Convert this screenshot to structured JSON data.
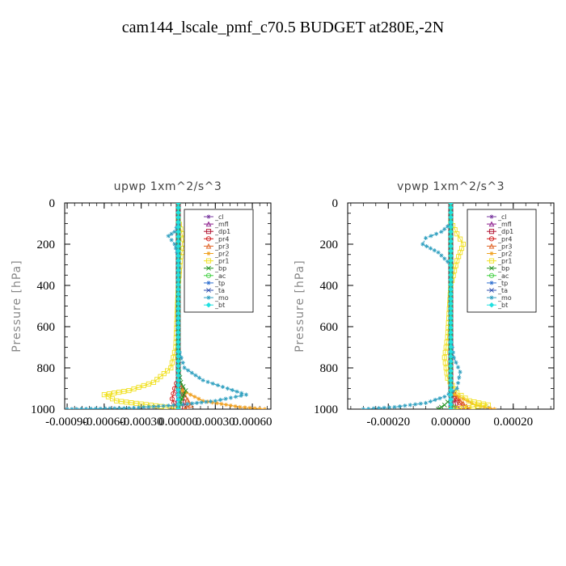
{
  "figure_title": "cam144_lscale_pmf_c70.5  BUDGET at280E,-2N",
  "chart_data": [
    {
      "type": "line",
      "title": "upwp    1xm^2/s^3",
      "ylabel": "Pressure  [hPa]",
      "xlabel": "",
      "ylim": [
        1000,
        0
      ],
      "xlim": [
        -0.00092,
        0.00075
      ],
      "yticks": [
        0,
        200,
        400,
        600,
        800,
        1000
      ],
      "xticks": [
        -0.0009,
        -0.0006,
        -0.0003,
        0.0,
        0.0003,
        0.0006
      ],
      "xtick_labels": [
        "-0.00090",
        "-0.00060",
        "-0.00030",
        "0.00000",
        "0.00030",
        "0.00060"
      ],
      "legend_position": "top-right",
      "series": [
        {
          "name": "_cl",
          "color": "#7a3aa0",
          "marker": "star",
          "points": [
            [
              0,
              0
            ],
            [
              0,
              100
            ],
            [
              0,
              200
            ],
            [
              0,
              300
            ],
            [
              0,
              400
            ],
            [
              0,
              500
            ],
            [
              0,
              600
            ],
            [
              0,
              700
            ],
            [
              0,
              800
            ],
            [
              0,
              900
            ],
            [
              0,
              1000
            ]
          ]
        },
        {
          "name": "_mfl",
          "color": "#8b1a8b",
          "marker": "triangle",
          "points": [
            [
              0,
              0
            ],
            [
              0,
              100
            ],
            [
              0,
              200
            ],
            [
              0,
              300
            ],
            [
              0,
              400
            ],
            [
              0,
              500
            ],
            [
              0,
              600
            ],
            [
              0,
              700
            ],
            [
              0,
              800
            ],
            [
              0,
              900
            ],
            [
              0,
              1000
            ]
          ]
        },
        {
          "name": "_dp1",
          "color": "#b01030",
          "marker": "square",
          "points": [
            [
              0,
              0
            ],
            [
              0,
              100
            ],
            [
              0,
              200
            ],
            [
              0,
              300
            ],
            [
              0,
              400
            ],
            [
              0,
              500
            ],
            [
              0,
              600
            ],
            [
              0,
              700
            ],
            [
              0,
              800
            ],
            [
              0,
              880
            ],
            [
              3e-05,
              940
            ],
            [
              5e-05,
              990
            ]
          ]
        },
        {
          "name": "_pr4",
          "color": "#d01818",
          "marker": "circle",
          "points": [
            [
              0,
              0
            ],
            [
              0,
              500
            ],
            [
              0,
              850
            ],
            [
              -3e-05,
              900
            ],
            [
              -5e-05,
              950
            ],
            [
              -2e-05,
              990
            ]
          ]
        },
        {
          "name": "_pr3",
          "color": "#e06020",
          "marker": "triangle",
          "points": [
            [
              0,
              0
            ],
            [
              0,
              850
            ],
            [
              5e-05,
              930
            ],
            [
              0.0001,
              980
            ],
            [
              5e-05,
              1000
            ]
          ]
        },
        {
          "name": "_pr2",
          "color": "#f0a020",
          "marker": "star",
          "points": [
            [
              0,
              0
            ],
            [
              0,
              900
            ],
            [
              0.0002,
              960
            ],
            [
              0.0005,
              990
            ],
            [
              0.0007,
              1000
            ]
          ]
        },
        {
          "name": "_pr1",
          "color": "#f0e020",
          "marker": "square",
          "points": [
            [
              0,
              80
            ],
            [
              3e-05,
              150
            ],
            [
              5e-05,
              200
            ],
            [
              2e-05,
              260
            ],
            [
              0,
              400
            ],
            [
              -2e-05,
              700
            ],
            [
              -6e-05,
              800
            ],
            [
              -0.0002,
              870
            ],
            [
              -0.0004,
              910
            ],
            [
              -0.0006,
              930
            ],
            [
              -0.0005,
              960
            ],
            [
              -0.0001,
              990
            ],
            [
              0,
              1000
            ]
          ]
        },
        {
          "name": "_bp",
          "color": "#209020",
          "marker": "cross",
          "points": [
            [
              0,
              0
            ],
            [
              0,
              800
            ],
            [
              2e-05,
              870
            ],
            [
              6e-05,
              910
            ],
            [
              3e-05,
              950
            ],
            [
              0,
              1000
            ]
          ]
        },
        {
          "name": "_ac",
          "color": "#40d040",
          "marker": "circle",
          "points": [
            [
              0,
              0
            ],
            [
              0,
              900
            ],
            [
              2e-05,
              950
            ],
            [
              0,
              1000
            ]
          ]
        },
        {
          "name": "_tp",
          "color": "#3070d0",
          "marker": "star",
          "points": [
            [
              0,
              0
            ],
            [
              0,
              1000
            ]
          ]
        },
        {
          "name": "_ta",
          "color": "#3050b0",
          "marker": "cross",
          "points": [
            [
              0,
              0
            ],
            [
              0,
              1000
            ]
          ]
        },
        {
          "name": "_mo",
          "color": "#30a0c0",
          "marker": "star",
          "points": [
            [
              0,
              100
            ],
            [
              -3e-05,
              140
            ],
            [
              -8e-05,
              160
            ],
            [
              -3e-05,
              200
            ],
            [
              0,
              260
            ],
            [
              0,
              700
            ],
            [
              5e-05,
              800
            ],
            [
              0.0002,
              860
            ],
            [
              0.0004,
              900
            ],
            [
              0.00055,
              930
            ],
            [
              0.0003,
              960
            ],
            [
              0,
              980
            ],
            [
              -0.0004,
              995
            ],
            [
              -0.0009,
              1000
            ]
          ]
        },
        {
          "name": "_bt",
          "color": "#20e0e0",
          "marker": "diamond",
          "points": [
            [
              0,
              0
            ],
            [
              0,
              1000
            ]
          ]
        }
      ]
    },
    {
      "type": "line",
      "title": "vpwp    1xm^2/s^3",
      "ylabel": "Pressure  [hPa]",
      "xlabel": "",
      "ylim": [
        1000,
        0
      ],
      "xlim": [
        -0.00033,
        0.00033
      ],
      "yticks": [
        0,
        200,
        400,
        600,
        800,
        1000
      ],
      "xticks": [
        -0.0002,
        0.0,
        0.0002
      ],
      "xtick_labels": [
        "-0.00020",
        "0.00000",
        "0.00020"
      ],
      "legend_position": "top-right",
      "series": [
        {
          "name": "_cl",
          "color": "#7a3aa0",
          "marker": "star",
          "points": [
            [
              0,
              0
            ],
            [
              0,
              100
            ],
            [
              0,
              200
            ],
            [
              0,
              300
            ],
            [
              0,
              400
            ],
            [
              0,
              500
            ],
            [
              0,
              600
            ],
            [
              0,
              700
            ],
            [
              0,
              800
            ],
            [
              0,
              900
            ],
            [
              0,
              1000
            ]
          ]
        },
        {
          "name": "_mfl",
          "color": "#8b1a8b",
          "marker": "triangle",
          "points": [
            [
              0,
              0
            ],
            [
              0,
              100
            ],
            [
              0,
              200
            ],
            [
              0,
              300
            ],
            [
              0,
              400
            ],
            [
              0,
              500
            ],
            [
              0,
              600
            ],
            [
              0,
              700
            ],
            [
              0,
              800
            ],
            [
              0,
              900
            ],
            [
              0,
              1000
            ]
          ]
        },
        {
          "name": "_dp1",
          "color": "#b01030",
          "marker": "square",
          "points": [
            [
              0,
              0
            ],
            [
              0,
              100
            ],
            [
              0,
              200
            ],
            [
              0,
              300
            ],
            [
              0,
              400
            ],
            [
              0,
              500
            ],
            [
              0,
              600
            ],
            [
              0,
              700
            ],
            [
              0,
              800
            ],
            [
              0,
              900
            ],
            [
              1e-05,
              950
            ],
            [
              2e-05,
              1000
            ]
          ]
        },
        {
          "name": "_pr4",
          "color": "#d01818",
          "marker": "circle",
          "points": [
            [
              0,
              0
            ],
            [
              0,
              900
            ],
            [
              2e-05,
              950
            ],
            [
              4e-05,
              990
            ]
          ]
        },
        {
          "name": "_pr3",
          "color": "#e06020",
          "marker": "triangle",
          "points": [
            [
              0,
              0
            ],
            [
              0,
              900
            ],
            [
              3e-05,
              960
            ],
            [
              6e-05,
              1000
            ]
          ]
        },
        {
          "name": "_pr2",
          "color": "#f0a020",
          "marker": "star",
          "points": [
            [
              0,
              0
            ],
            [
              0,
              920
            ],
            [
              8e-05,
              980
            ],
            [
              0.00014,
              1000
            ]
          ]
        },
        {
          "name": "_pr1",
          "color": "#f0e020",
          "marker": "square",
          "points": [
            [
              0,
              90
            ],
            [
              2e-05,
              150
            ],
            [
              4e-05,
              200
            ],
            [
              2e-05,
              280
            ],
            [
              0,
              400
            ],
            [
              -1e-05,
              650
            ],
            [
              -2e-05,
              750
            ],
            [
              -1e-05,
              850
            ],
            [
              2e-05,
              920
            ],
            [
              6e-05,
              960
            ],
            [
              0.00012,
              980
            ],
            [
              4e-05,
              995
            ],
            [
              0,
              1000
            ]
          ]
        },
        {
          "name": "_bp",
          "color": "#209020",
          "marker": "cross",
          "points": [
            [
              0,
              0
            ],
            [
              0,
              950
            ],
            [
              -2e-05,
              980
            ],
            [
              -4e-05,
              1000
            ]
          ]
        },
        {
          "name": "_ac",
          "color": "#40d040",
          "marker": "circle",
          "points": [
            [
              0,
              0
            ],
            [
              0,
              960
            ],
            [
              1e-05,
              990
            ],
            [
              0,
              1000
            ]
          ]
        },
        {
          "name": "_tp",
          "color": "#3070d0",
          "marker": "star",
          "points": [
            [
              0,
              0
            ],
            [
              0,
              1000
            ]
          ]
        },
        {
          "name": "_ta",
          "color": "#3050b0",
          "marker": "cross",
          "points": [
            [
              0,
              0
            ],
            [
              0,
              1000
            ]
          ]
        },
        {
          "name": "_mo",
          "color": "#30a0c0",
          "marker": "star",
          "points": [
            [
              0,
              100
            ],
            [
              -3e-05,
              140
            ],
            [
              -8e-05,
              170
            ],
            [
              -9e-05,
              200
            ],
            [
              -4e-05,
              240
            ],
            [
              0,
              300
            ],
            [
              0,
              650
            ],
            [
              1e-05,
              750
            ],
            [
              3e-05,
              820
            ],
            [
              2e-05,
              900
            ],
            [
              -2e-05,
              940
            ],
            [
              -8e-05,
              970
            ],
            [
              -0.00018,
              990
            ],
            [
              -0.00028,
              1000
            ]
          ]
        },
        {
          "name": "_bt",
          "color": "#20e0e0",
          "marker": "diamond",
          "points": [
            [
              0,
              0
            ],
            [
              0,
              1000
            ]
          ]
        }
      ]
    }
  ]
}
